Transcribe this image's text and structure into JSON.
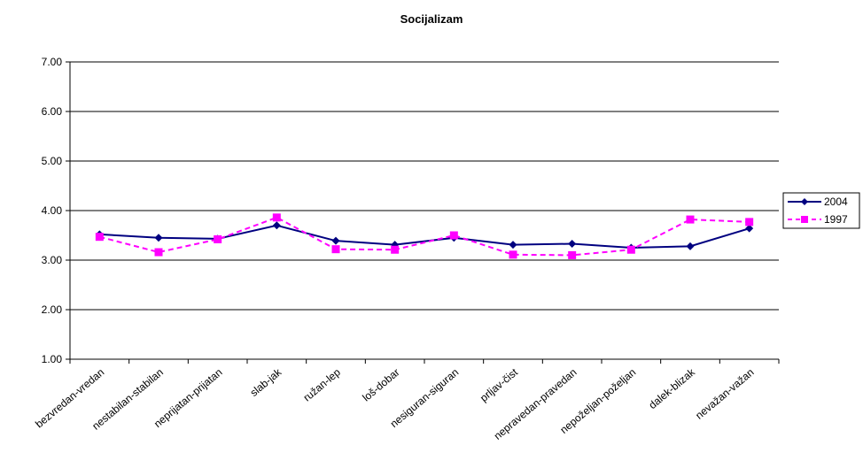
{
  "chart_data": {
    "type": "line",
    "title": "Socijalizam",
    "xlabel": "",
    "ylabel": "",
    "ylim": [
      1,
      7
    ],
    "yticks": [
      "1.00",
      "2.00",
      "3.00",
      "4.00",
      "5.00",
      "6.00",
      "7.00"
    ],
    "grid": true,
    "legend_position": "right",
    "categories": [
      "bezvredan-vredan",
      "nestabilan-stabilan",
      "neprijatan-prijatan",
      "slab-jak",
      "ružan-lep",
      "loš-dobar",
      "nesiguran-siguran",
      "prljav-čist",
      "nepravedan-pravedan",
      "nepoželjan-poželjan",
      "dalek-blizak",
      "nevažan-važan"
    ],
    "series": [
      {
        "name": "2004",
        "color": "#000080",
        "marker": "diamond",
        "line_style": "solid",
        "values": [
          3.52,
          3.45,
          3.43,
          3.7,
          3.39,
          3.31,
          3.45,
          3.31,
          3.33,
          3.25,
          3.28,
          3.64
        ]
      },
      {
        "name": "1997",
        "color": "#FF00FF",
        "marker": "square",
        "line_style": "dashed",
        "values": [
          3.47,
          3.16,
          3.42,
          3.86,
          3.22,
          3.21,
          3.5,
          3.11,
          3.1,
          3.21,
          3.82,
          3.77
        ]
      }
    ]
  }
}
